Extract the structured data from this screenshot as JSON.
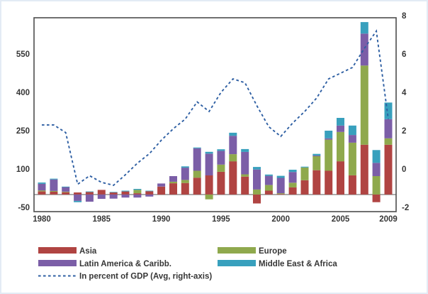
{
  "figure": {
    "background": "#ffffff",
    "border_color": "#e3ebf5",
    "plot_frame_color": "#4d4d4d",
    "zero_line_color": "#9a9a9a",
    "tick_text_color": "#363636"
  },
  "chart_data": {
    "type": "combo-stacked-bar-line",
    "title": "",
    "grid": false,
    "legend_position": "bottom",
    "categories": [
      1980,
      1981,
      1982,
      1983,
      1984,
      1985,
      1986,
      1987,
      1988,
      1989,
      1990,
      1991,
      1992,
      1993,
      1994,
      1995,
      1996,
      1997,
      1998,
      1999,
      2000,
      2001,
      2002,
      2003,
      2004,
      2005,
      2006,
      2007,
      2008,
      2009
    ],
    "x_tick_labels": [
      "1980",
      "1985",
      "1990",
      "1995",
      "2000",
      "2005",
      "2009"
    ],
    "x_tick_years": [
      1980,
      1985,
      1990,
      1995,
      2000,
      2005,
      2009
    ],
    "left_axis": {
      "ticks": [
        550,
        400,
        250,
        100,
        -50
      ],
      "range": [
        -67,
        692
      ]
    },
    "right_axis": {
      "ticks": [
        8,
        6,
        4,
        2,
        0,
        -2
      ],
      "range": [
        -2.23,
        7.89
      ]
    },
    "bar_series": [
      {
        "name": "Asia",
        "color": "#b04442",
        "values": [
          12,
          11,
          9,
          8,
          10,
          18,
          8,
          12,
          5,
          13,
          31,
          44,
          45,
          66,
          75,
          89,
          130,
          70,
          -35,
          15,
          2,
          28,
          56,
          95,
          93,
          130,
          75,
          195,
          -30,
          195
        ]
      },
      {
        "name": "Europe",
        "color": "#8fa94d",
        "values": [
          4,
          3,
          2,
          0,
          0,
          0,
          0,
          0,
          13,
          0,
          0,
          6,
          12,
          27,
          -19,
          28,
          28,
          9,
          20,
          22,
          3,
          18,
          50,
          55,
          122,
          115,
          128,
          310,
          72,
          25
        ]
      },
      {
        "name": "Latin America & Caribb.",
        "color": "#7b5ea7",
        "values": [
          26,
          45,
          19,
          -25,
          -28,
          -17,
          -16,
          -12,
          -12,
          -8,
          12,
          22,
          48,
          88,
          85,
          54,
          72,
          88,
          78,
          36,
          60,
          42,
          0,
          3,
          5,
          25,
          30,
          125,
          52,
          75
        ]
      },
      {
        "name": "Middle East & Africa",
        "color": "#38a0bd",
        "values": [
          5,
          3,
          1,
          -5,
          2,
          0,
          2,
          3,
          4,
          2,
          0,
          0,
          5,
          3,
          7,
          6,
          12,
          11,
          10,
          5,
          8,
          9,
          3,
          6,
          30,
          30,
          37,
          45,
          50,
          65
        ]
      }
    ],
    "line_series": {
      "name": "In percent of GDP (Avg, right-axis)",
      "color": "#2e5fa3",
      "style": "dashed",
      "axis": "right",
      "values": [
        2.3,
        2.3,
        1.9,
        -0.8,
        -0.35,
        -0.7,
        -0.85,
        -0.3,
        0.3,
        0.8,
        1.5,
        2.1,
        2.6,
        3.5,
        3.0,
        4.0,
        4.7,
        4.5,
        3.3,
        2.2,
        1.7,
        2.4,
        3.0,
        3.7,
        4.7,
        5.0,
        5.3,
        6.3,
        7.2,
        2.6
      ]
    }
  }
}
